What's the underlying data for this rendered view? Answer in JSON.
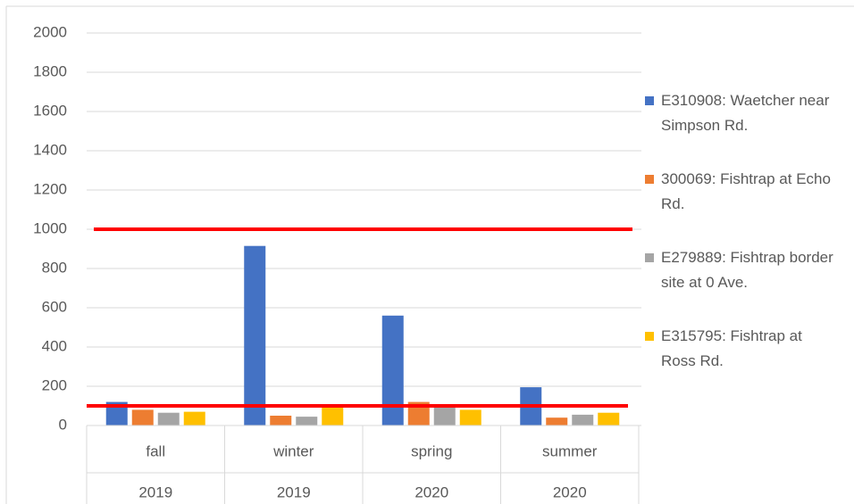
{
  "chart_data": {
    "type": "bar",
    "categories": [
      "fall",
      "winter",
      "spring",
      "summer"
    ],
    "category_groups": [
      "2019",
      "2019",
      "2020",
      "2020"
    ],
    "series": [
      {
        "name": "E310908: Waetcher near Simpson Rd.",
        "color": "#4472c4",
        "values": [
          120,
          915,
          560,
          195
        ]
      },
      {
        "name": "300069: Fishtrap at Echo Rd.",
        "color": "#ed7d31",
        "values": [
          80,
          50,
          120,
          40
        ]
      },
      {
        "name": "E279889: Fishtrap border site at 0 Ave.",
        "color": "#a5a5a5",
        "values": [
          65,
          45,
          105,
          55
        ]
      },
      {
        "name": "E315795: Fishtrap at Ross Rd.",
        "color": "#ffc000",
        "values": [
          70,
          95,
          80,
          65
        ]
      }
    ],
    "reference_lines": [
      1000,
      100
    ],
    "reference_line_color": "#ff0000",
    "ylim": [
      0,
      2000
    ],
    "yticks": [
      0,
      200,
      400,
      600,
      800,
      1000,
      1200,
      1400,
      1600,
      1800,
      2000
    ],
    "grid": true,
    "legend": "right"
  }
}
